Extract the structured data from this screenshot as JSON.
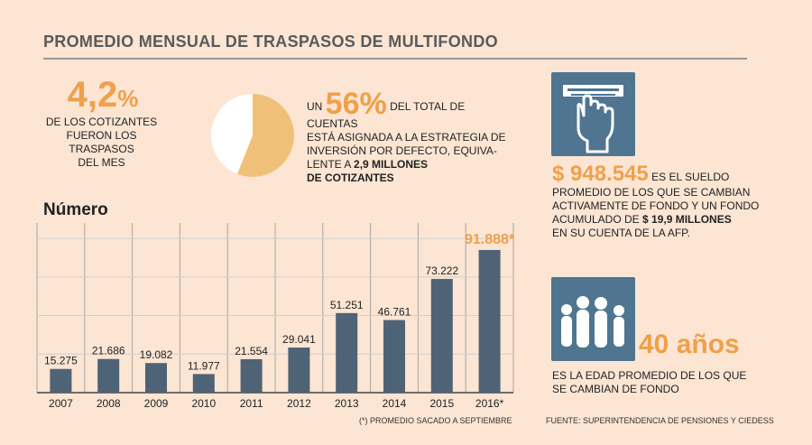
{
  "title": "PROMEDIO MENSUAL DE TRASPASOS DE MULTIFONDO",
  "stat1": {
    "value": "4,2",
    "percent": "%",
    "line1": "DE LOS COTIZANTES",
    "line2": "FUERON LOS TRASPASOS",
    "line3": "DEL MES"
  },
  "stat2": {
    "prefix": "UN ",
    "value": "56%",
    "text1": " DEL TOTAL DE CUENTAS",
    "line2": "ESTÁ ASIGNADA A LA ESTRATEGIA DE",
    "line3": "INVERSIÓN POR DEFECTO, EQUIVA-",
    "line4_pre": "LENTE A ",
    "line4_bold": "2,9 MILLONES",
    "line5_bold": "DE COTIZANTES",
    "pie_fraction": 0.56,
    "pie_color": "#f0c078"
  },
  "money": {
    "value": "$ 948.545",
    "text1": " ES EL  SUELDO",
    "line2": "PROMEDIO DE LOS QUE SE CAMBIAN",
    "line3": "ACTIVAMENTE DE FONDO Y UN FONDO",
    "line4_pre": "ACUMULADO DE ",
    "line4_bold": "$ 19,9 MILLONES",
    "line5": "EN SU CUENTA DE LA AFP."
  },
  "age": {
    "value": "40 años",
    "line1": "ES LA EDAD PROMEDIO DE LOS QUE",
    "line2": "SE CAMBIAN DE FONDO"
  },
  "icons": {
    "atm": "atm-hand-icon",
    "people": "people-group-icon"
  },
  "colors": {
    "bar": "#4e6376",
    "accent": "#f0a04a",
    "icon_bg": "#4f7590",
    "background": "#fce5d3"
  },
  "footnote": "(*) PROMEDIO SACADO A SEPTIEMBRE",
  "source": "FUENTE: SUPERINTENDENCIA DE PENSIONES Y CIEDESS",
  "chart_data": {
    "type": "bar",
    "ylabel": "Número",
    "categories": [
      "2007",
      "2008",
      "2009",
      "2010",
      "2011",
      "2012",
      "2013",
      "2014",
      "2015",
      "2016*"
    ],
    "values": [
      15275,
      21686,
      19082,
      11977,
      21554,
      29041,
      51251,
      46761,
      73222,
      91888
    ],
    "labels": [
      "15.275",
      "21.686",
      "19.082",
      "11.977",
      "21.554",
      "29.041",
      "51.251",
      "46.761",
      "73.222",
      "91.888*"
    ],
    "highlight_index": 9,
    "ylim": [
      0,
      100000
    ],
    "grid": true
  }
}
